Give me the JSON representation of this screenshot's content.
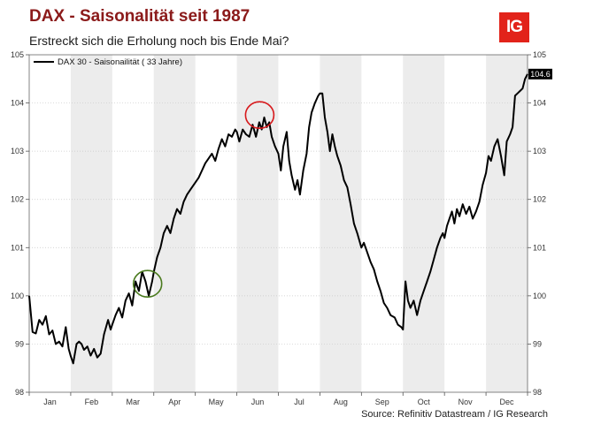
{
  "header": {
    "title": "DAX - Saisonalität seit 1987",
    "subtitle": "Erstreckt sich die Erholung noch bis Ende Mai?",
    "logo_text": "IG"
  },
  "footer": {
    "source": "Source: Refinitiv Datastream / IG Research"
  },
  "chart_data": {
    "type": "line",
    "series": [
      {
        "name": "DAX 30 - Saisonailität ( 33 Jahre)",
        "color": "#000000",
        "last_value_label": "104.6",
        "points": [
          [
            0.0,
            100.0
          ],
          [
            0.08,
            99.25
          ],
          [
            0.16,
            99.22
          ],
          [
            0.24,
            99.5
          ],
          [
            0.32,
            99.4
          ],
          [
            0.4,
            99.58
          ],
          [
            0.48,
            99.2
          ],
          [
            0.56,
            99.28
          ],
          [
            0.64,
            99.0
          ],
          [
            0.72,
            99.05
          ],
          [
            0.8,
            98.95
          ],
          [
            0.88,
            99.35
          ],
          [
            0.95,
            98.9
          ],
          [
            1.0,
            98.75
          ],
          [
            1.06,
            98.6
          ],
          [
            1.14,
            99.0
          ],
          [
            1.2,
            99.05
          ],
          [
            1.26,
            99.0
          ],
          [
            1.32,
            98.88
          ],
          [
            1.4,
            98.95
          ],
          [
            1.48,
            98.76
          ],
          [
            1.56,
            98.9
          ],
          [
            1.64,
            98.72
          ],
          [
            1.72,
            98.8
          ],
          [
            1.8,
            99.2
          ],
          [
            1.9,
            99.5
          ],
          [
            1.96,
            99.3
          ],
          [
            2.0,
            99.4
          ],
          [
            2.08,
            99.6
          ],
          [
            2.16,
            99.75
          ],
          [
            2.24,
            99.55
          ],
          [
            2.32,
            99.9
          ],
          [
            2.4,
            100.05
          ],
          [
            2.48,
            99.8
          ],
          [
            2.56,
            100.3
          ],
          [
            2.64,
            100.1
          ],
          [
            2.72,
            100.5
          ],
          [
            2.8,
            100.3
          ],
          [
            2.88,
            100.0
          ],
          [
            2.96,
            100.3
          ],
          [
            3.0,
            100.5
          ],
          [
            3.08,
            100.8
          ],
          [
            3.16,
            101.0
          ],
          [
            3.24,
            101.3
          ],
          [
            3.32,
            101.45
          ],
          [
            3.4,
            101.3
          ],
          [
            3.48,
            101.6
          ],
          [
            3.56,
            101.8
          ],
          [
            3.64,
            101.7
          ],
          [
            3.72,
            101.95
          ],
          [
            3.8,
            102.1
          ],
          [
            3.88,
            102.2
          ],
          [
            3.96,
            102.3
          ],
          [
            4.0,
            102.35
          ],
          [
            4.08,
            102.45
          ],
          [
            4.16,
            102.6
          ],
          [
            4.24,
            102.75
          ],
          [
            4.32,
            102.85
          ],
          [
            4.4,
            102.95
          ],
          [
            4.48,
            102.8
          ],
          [
            4.56,
            103.05
          ],
          [
            4.64,
            103.25
          ],
          [
            4.72,
            103.1
          ],
          [
            4.8,
            103.35
          ],
          [
            4.88,
            103.3
          ],
          [
            4.96,
            103.45
          ],
          [
            5.0,
            103.4
          ],
          [
            5.06,
            103.2
          ],
          [
            5.14,
            103.45
          ],
          [
            5.22,
            103.35
          ],
          [
            5.3,
            103.3
          ],
          [
            5.38,
            103.55
          ],
          [
            5.46,
            103.3
          ],
          [
            5.54,
            103.6
          ],
          [
            5.6,
            103.45
          ],
          [
            5.66,
            103.7
          ],
          [
            5.72,
            103.5
          ],
          [
            5.78,
            103.6
          ],
          [
            5.84,
            103.3
          ],
          [
            5.92,
            103.1
          ],
          [
            6.0,
            102.95
          ],
          [
            6.06,
            102.6
          ],
          [
            6.12,
            103.1
          ],
          [
            6.2,
            103.4
          ],
          [
            6.26,
            102.8
          ],
          [
            6.32,
            102.5
          ],
          [
            6.4,
            102.2
          ],
          [
            6.46,
            102.4
          ],
          [
            6.52,
            102.1
          ],
          [
            6.6,
            102.6
          ],
          [
            6.68,
            102.95
          ],
          [
            6.74,
            103.5
          ],
          [
            6.8,
            103.8
          ],
          [
            6.88,
            104.0
          ],
          [
            6.96,
            104.15
          ],
          [
            7.0,
            104.2
          ],
          [
            7.06,
            104.2
          ],
          [
            7.12,
            103.7
          ],
          [
            7.18,
            103.4
          ],
          [
            7.24,
            103.0
          ],
          [
            7.3,
            103.35
          ],
          [
            7.36,
            103.1
          ],
          [
            7.42,
            102.9
          ],
          [
            7.5,
            102.7
          ],
          [
            7.58,
            102.4
          ],
          [
            7.66,
            102.25
          ],
          [
            7.74,
            101.9
          ],
          [
            7.82,
            101.5
          ],
          [
            7.9,
            101.3
          ],
          [
            8.0,
            101.0
          ],
          [
            8.06,
            101.1
          ],
          [
            8.14,
            100.9
          ],
          [
            8.22,
            100.7
          ],
          [
            8.3,
            100.55
          ],
          [
            8.38,
            100.3
          ],
          [
            8.46,
            100.1
          ],
          [
            8.54,
            99.85
          ],
          [
            8.62,
            99.75
          ],
          [
            8.7,
            99.6
          ],
          [
            8.8,
            99.55
          ],
          [
            8.88,
            99.4
          ],
          [
            8.96,
            99.35
          ],
          [
            9.0,
            99.3
          ],
          [
            9.06,
            100.3
          ],
          [
            9.12,
            99.9
          ],
          [
            9.18,
            99.75
          ],
          [
            9.26,
            99.9
          ],
          [
            9.34,
            99.6
          ],
          [
            9.42,
            99.9
          ],
          [
            9.5,
            100.1
          ],
          [
            9.58,
            100.3
          ],
          [
            9.66,
            100.5
          ],
          [
            9.74,
            100.75
          ],
          [
            9.82,
            101.0
          ],
          [
            9.9,
            101.2
          ],
          [
            9.96,
            101.3
          ],
          [
            10.0,
            101.2
          ],
          [
            10.06,
            101.45
          ],
          [
            10.12,
            101.6
          ],
          [
            10.18,
            101.75
          ],
          [
            10.24,
            101.5
          ],
          [
            10.3,
            101.8
          ],
          [
            10.36,
            101.65
          ],
          [
            10.44,
            101.9
          ],
          [
            10.52,
            101.7
          ],
          [
            10.6,
            101.85
          ],
          [
            10.68,
            101.6
          ],
          [
            10.76,
            101.75
          ],
          [
            10.84,
            101.95
          ],
          [
            10.92,
            102.3
          ],
          [
            11.0,
            102.55
          ],
          [
            11.06,
            102.9
          ],
          [
            11.12,
            102.8
          ],
          [
            11.2,
            103.1
          ],
          [
            11.28,
            103.25
          ],
          [
            11.36,
            102.9
          ],
          [
            11.44,
            102.5
          ],
          [
            11.5,
            103.2
          ],
          [
            11.58,
            103.35
          ],
          [
            11.64,
            103.5
          ],
          [
            11.7,
            104.15
          ],
          [
            11.76,
            104.2
          ],
          [
            11.82,
            104.25
          ],
          [
            11.88,
            104.3
          ],
          [
            11.94,
            104.5
          ],
          [
            12.0,
            104.6
          ]
        ]
      }
    ],
    "x_ticks": [
      "Jan",
      "Feb",
      "Mar",
      "Apr",
      "May",
      "Jun",
      "Jul",
      "Aug",
      "Sep",
      "Oct",
      "Nov",
      "Dec"
    ],
    "y_ticks": [
      98,
      99,
      100,
      101,
      102,
      103,
      104,
      105
    ],
    "xlim": [
      0,
      12
    ],
    "ylim": [
      98,
      105
    ],
    "grid": true,
    "shaded_month_bands": true,
    "legend_position": "top-left",
    "annotations": [
      {
        "type": "circle",
        "color": "#4a7a1e",
        "at": [
          2.85,
          100.25
        ]
      },
      {
        "type": "circle",
        "color": "#d7191c",
        "at": [
          5.55,
          103.75
        ]
      }
    ]
  }
}
